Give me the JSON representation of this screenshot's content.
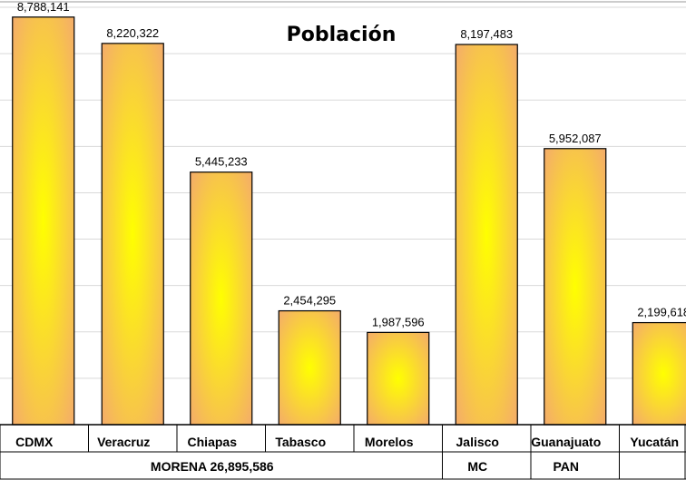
{
  "chart_data": {
    "type": "bar",
    "title": "Población",
    "categories": [
      "CDMX",
      "Veracruz",
      "Chiapas",
      "Tabasco",
      "Morelos",
      "Jalisco",
      "Guanajuato",
      "Yucatán"
    ],
    "values": [
      8788141,
      8220322,
      5445233,
      2454295,
      1987596,
      8197483,
      5952087,
      2199618
    ],
    "value_labels": [
      "8,788,141",
      "8,220,322",
      "5,445,233",
      "2,454,295",
      "1,987,596",
      "8,197,483",
      "5,952,087",
      "2,199,618"
    ],
    "groups": [
      {
        "label": "MORENA  26,895,586",
        "categories": [
          "CDMX",
          "Veracruz",
          "Chiapas",
          "Tabasco",
          "Morelos"
        ]
      },
      {
        "label": "MC",
        "categories": [
          "Jalisco"
        ]
      },
      {
        "label": "PAN",
        "categories": [
          "Guanajuato"
        ]
      },
      {
        "label": "",
        "categories": [
          "Yucatán"
        ]
      }
    ],
    "ylim": [
      0,
      9000000
    ],
    "grid": true,
    "colors": {
      "bar_center": "#ffff00",
      "bar_edge": "#f4ac6a",
      "bar_stroke": "#000000",
      "grid": "#d9d9d9"
    }
  }
}
